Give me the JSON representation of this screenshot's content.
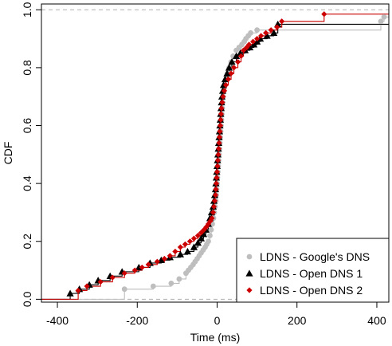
{
  "chart_data": {
    "type": "line",
    "title": "",
    "xlabel": "Time (ms)",
    "ylabel": "CDF",
    "xlim": [
      -440,
      430
    ],
    "ylim": [
      -0.01,
      1.02
    ],
    "x_ticks": [
      -400,
      -200,
      0,
      200,
      400
    ],
    "y_ticks": [
      0.0,
      0.2,
      0.4,
      0.6,
      0.8,
      1.0
    ],
    "x_tick_labels": [
      "-400",
      "-200",
      "0",
      "200",
      "400"
    ],
    "y_tick_labels": [
      "0.0",
      "0.2",
      "0.4",
      "0.6",
      "0.8",
      "1.0"
    ],
    "reference_lines": [
      0,
      1
    ],
    "legend": {
      "position": "bottom-right"
    },
    "series": [
      {
        "name": "LDNS - Google's DNS",
        "color": "#bebebe",
        "marker": "circle",
        "x": [
          -232,
          -160,
          -115,
          -95,
          -78,
          -72,
          -66,
          -60,
          -55,
          -50,
          -45,
          -40,
          -35,
          -30,
          -26,
          -22,
          -18,
          -15,
          -12,
          -9,
          -7,
          -5,
          -3,
          -2,
          -1,
          0,
          1,
          2,
          3,
          4,
          5,
          6,
          7,
          8,
          9,
          10,
          11,
          12,
          13,
          14,
          15,
          17,
          19,
          22,
          26,
          30,
          35,
          40,
          48,
          55,
          62,
          68,
          72,
          78,
          84,
          100,
          410,
          418
        ],
        "y": [
          0.035,
          0.045,
          0.055,
          0.07,
          0.09,
          0.1,
          0.11,
          0.12,
          0.13,
          0.14,
          0.15,
          0.16,
          0.17,
          0.18,
          0.19,
          0.2,
          0.22,
          0.24,
          0.26,
          0.28,
          0.3,
          0.32,
          0.34,
          0.36,
          0.38,
          0.4,
          0.42,
          0.44,
          0.46,
          0.48,
          0.5,
          0.52,
          0.54,
          0.56,
          0.58,
          0.6,
          0.62,
          0.64,
          0.66,
          0.68,
          0.7,
          0.72,
          0.74,
          0.76,
          0.78,
          0.8,
          0.82,
          0.84,
          0.86,
          0.87,
          0.88,
          0.89,
          0.9,
          0.91,
          0.92,
          0.93,
          0.96,
          0.975
        ]
      },
      {
        "name": "LDNS - Open DNS 1",
        "color": "#000000",
        "marker": "triangle",
        "x": [
          -368,
          -345,
          -320,
          -298,
          -268,
          -238,
          -196,
          -168,
          -140,
          -118,
          -92,
          -74,
          -58,
          -48,
          -40,
          -34,
          -28,
          -22,
          -18,
          -14,
          -10,
          -8,
          -6,
          -4,
          -3,
          -2,
          -1,
          0,
          1,
          2,
          3,
          4,
          5,
          6,
          7,
          8,
          9,
          10,
          11,
          12,
          14,
          16,
          20,
          25,
          30,
          37,
          48,
          58,
          70,
          82,
          92,
          100,
          108,
          125,
          142,
          152
        ],
        "y": [
          0.02,
          0.035,
          0.05,
          0.065,
          0.08,
          0.095,
          0.11,
          0.125,
          0.135,
          0.145,
          0.155,
          0.165,
          0.18,
          0.195,
          0.21,
          0.225,
          0.24,
          0.26,
          0.28,
          0.3,
          0.32,
          0.34,
          0.36,
          0.38,
          0.4,
          0.42,
          0.44,
          0.46,
          0.48,
          0.5,
          0.52,
          0.54,
          0.56,
          0.58,
          0.6,
          0.62,
          0.64,
          0.66,
          0.68,
          0.7,
          0.72,
          0.74,
          0.76,
          0.78,
          0.8,
          0.82,
          0.84,
          0.85,
          0.86,
          0.87,
          0.88,
          0.89,
          0.9,
          0.91,
          0.92,
          0.95
        ]
      },
      {
        "name": "LDNS - Open DNS 2",
        "color": "#cc0000",
        "marker": "diamond",
        "x": [
          -348,
          -326,
          -292,
          -262,
          -232,
          -206,
          -188,
          -172,
          -150,
          -132,
          -118,
          -105,
          -92,
          -80,
          -68,
          -58,
          -48,
          -40,
          -33,
          -27,
          -22,
          -17,
          -13,
          -10,
          -8,
          -6,
          -4,
          -3,
          -2,
          -1,
          0,
          1,
          2,
          3,
          4,
          5,
          6,
          7,
          8,
          9,
          10,
          11,
          13,
          15,
          18,
          22,
          28,
          35,
          42,
          52,
          60,
          66,
          74,
          80,
          90,
          100,
          110,
          122,
          135,
          150,
          162,
          268
        ],
        "y": [
          0.03,
          0.045,
          0.06,
          0.075,
          0.09,
          0.1,
          0.11,
          0.12,
          0.13,
          0.14,
          0.15,
          0.165,
          0.18,
          0.19,
          0.2,
          0.21,
          0.22,
          0.23,
          0.24,
          0.25,
          0.26,
          0.27,
          0.28,
          0.3,
          0.32,
          0.34,
          0.36,
          0.38,
          0.4,
          0.42,
          0.44,
          0.46,
          0.48,
          0.5,
          0.52,
          0.54,
          0.56,
          0.58,
          0.6,
          0.62,
          0.64,
          0.66,
          0.68,
          0.7,
          0.72,
          0.74,
          0.76,
          0.78,
          0.8,
          0.82,
          0.84,
          0.86,
          0.87,
          0.88,
          0.89,
          0.9,
          0.91,
          0.92,
          0.93,
          0.94,
          0.96,
          0.985
        ]
      }
    ]
  }
}
